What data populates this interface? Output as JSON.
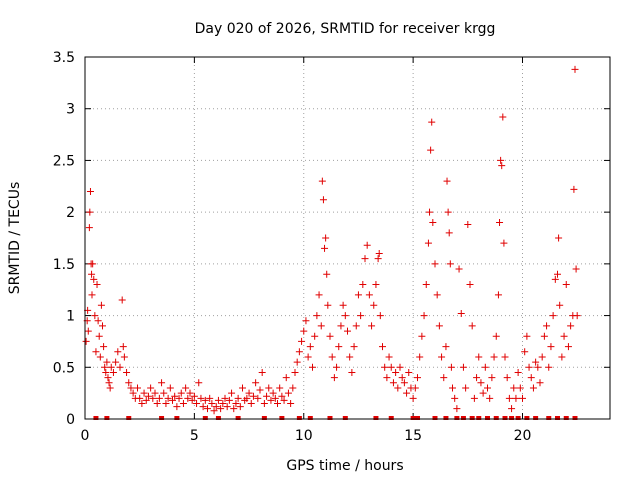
{
  "chart_data": {
    "type": "scatter",
    "title": "Day 020 of 2026, SRMTID for receiver krgg",
    "xlabel": "GPS time / hours",
    "ylabel": "SRMTID / TECUs",
    "xlim": [
      0,
      24
    ],
    "ylim": [
      0,
      3.5
    ],
    "xticks": [
      0,
      5,
      10,
      15,
      20
    ],
    "xtick_labels": [
      "0",
      "5",
      "10",
      "15",
      "20"
    ],
    "yticks": [
      0,
      0.5,
      1,
      1.5,
      2,
      2.5,
      3,
      3.5
    ],
    "ytick_labels": [
      "0",
      "0.5",
      "1",
      "1.5",
      "2",
      "2.5",
      "3",
      "3.5"
    ],
    "grid": true,
    "marker": "+",
    "color": "#e00000",
    "series": [
      {
        "name": "SRMTID",
        "points": [
          [
            0.05,
            0.75
          ],
          [
            0.1,
            0.95
          ],
          [
            0.12,
            1.05
          ],
          [
            0.15,
            0.85
          ],
          [
            0.2,
            1.85
          ],
          [
            0.22,
            2.0
          ],
          [
            0.25,
            2.2
          ],
          [
            0.28,
            1.5
          ],
          [
            0.3,
            1.4
          ],
          [
            0.32,
            1.2
          ],
          [
            0.35,
            1.5
          ],
          [
            0.4,
            1.35
          ],
          [
            0.45,
            1.0
          ],
          [
            0.5,
            0.65
          ],
          [
            0.55,
            1.3
          ],
          [
            0.6,
            0.95
          ],
          [
            0.65,
            0.8
          ],
          [
            0.7,
            0.6
          ],
          [
            0.75,
            1.1
          ],
          [
            0.8,
            0.9
          ],
          [
            0.85,
            0.7
          ],
          [
            0.9,
            0.5
          ],
          [
            0.95,
            0.45
          ],
          [
            1.0,
            0.55
          ],
          [
            1.05,
            0.4
          ],
          [
            1.1,
            0.35
          ],
          [
            1.15,
            0.3
          ],
          [
            1.2,
            0.5
          ],
          [
            1.3,
            0.45
          ],
          [
            1.4,
            0.55
          ],
          [
            1.5,
            0.65
          ],
          [
            1.6,
            0.5
          ],
          [
            1.7,
            1.15
          ],
          [
            1.75,
            0.7
          ],
          [
            1.8,
            0.6
          ],
          [
            1.9,
            0.45
          ],
          [
            2.0,
            0.35
          ],
          [
            2.1,
            0.3
          ],
          [
            2.2,
            0.25
          ],
          [
            2.3,
            0.2
          ],
          [
            2.4,
            0.3
          ],
          [
            2.5,
            0.2
          ],
          [
            2.6,
            0.15
          ],
          [
            2.7,
            0.25
          ],
          [
            2.8,
            0.18
          ],
          [
            2.9,
            0.22
          ],
          [
            3.0,
            0.3
          ],
          [
            3.1,
            0.2
          ],
          [
            3.2,
            0.25
          ],
          [
            3.3,
            0.15
          ],
          [
            3.4,
            0.2
          ],
          [
            3.5,
            0.35
          ],
          [
            3.6,
            0.25
          ],
          [
            3.7,
            0.15
          ],
          [
            3.8,
            0.2
          ],
          [
            3.9,
            0.3
          ],
          [
            4.0,
            0.18
          ],
          [
            4.1,
            0.22
          ],
          [
            4.2,
            0.12
          ],
          [
            4.3,
            0.2
          ],
          [
            4.4,
            0.25
          ],
          [
            4.5,
            0.15
          ],
          [
            4.6,
            0.3
          ],
          [
            4.7,
            0.2
          ],
          [
            4.8,
            0.25
          ],
          [
            4.9,
            0.18
          ],
          [
            5.0,
            0.22
          ],
          [
            5.1,
            0.15
          ],
          [
            5.2,
            0.35
          ],
          [
            5.3,
            0.2
          ],
          [
            5.4,
            0.12
          ],
          [
            5.5,
            0.18
          ],
          [
            5.6,
            0.1
          ],
          [
            5.7,
            0.2
          ],
          [
            5.8,
            0.15
          ],
          [
            5.9,
            0.08
          ],
          [
            6.0,
            0.12
          ],
          [
            6.1,
            0.18
          ],
          [
            6.2,
            0.1
          ],
          [
            6.3,
            0.15
          ],
          [
            6.4,
            0.2
          ],
          [
            6.5,
            0.12
          ],
          [
            6.6,
            0.18
          ],
          [
            6.7,
            0.25
          ],
          [
            6.8,
            0.1
          ],
          [
            6.9,
            0.15
          ],
          [
            7.0,
            0.2
          ],
          [
            7.1,
            0.12
          ],
          [
            7.2,
            0.3
          ],
          [
            7.3,
            0.18
          ],
          [
            7.4,
            0.2
          ],
          [
            7.5,
            0.25
          ],
          [
            7.6,
            0.15
          ],
          [
            7.7,
            0.22
          ],
          [
            7.8,
            0.35
          ],
          [
            7.9,
            0.2
          ],
          [
            8.0,
            0.28
          ],
          [
            8.1,
            0.45
          ],
          [
            8.2,
            0.15
          ],
          [
            8.3,
            0.22
          ],
          [
            8.4,
            0.3
          ],
          [
            8.5,
            0.18
          ],
          [
            8.6,
            0.25
          ],
          [
            8.7,
            0.2
          ],
          [
            8.8,
            0.15
          ],
          [
            8.9,
            0.3
          ],
          [
            9.0,
            0.22
          ],
          [
            9.1,
            0.18
          ],
          [
            9.2,
            0.4
          ],
          [
            9.3,
            0.25
          ],
          [
            9.4,
            0.15
          ],
          [
            9.5,
            0.3
          ],
          [
            9.6,
            0.45
          ],
          [
            9.7,
            0.55
          ],
          [
            9.8,
            0.65
          ],
          [
            9.9,
            0.75
          ],
          [
            10.0,
            0.85
          ],
          [
            10.1,
            0.95
          ],
          [
            10.2,
            0.6
          ],
          [
            10.3,
            0.7
          ],
          [
            10.4,
            0.5
          ],
          [
            10.5,
            0.8
          ],
          [
            10.6,
            1.0
          ],
          [
            10.7,
            1.2
          ],
          [
            10.8,
            0.9
          ],
          [
            10.85,
            2.3
          ],
          [
            10.9,
            2.12
          ],
          [
            10.95,
            1.65
          ],
          [
            11.0,
            1.75
          ],
          [
            11.05,
            1.4
          ],
          [
            11.1,
            1.1
          ],
          [
            11.2,
            0.8
          ],
          [
            11.3,
            0.6
          ],
          [
            11.4,
            0.4
          ],
          [
            11.5,
            0.5
          ],
          [
            11.6,
            0.7
          ],
          [
            11.7,
            0.9
          ],
          [
            11.8,
            1.1
          ],
          [
            11.9,
            1.0
          ],
          [
            12.0,
            0.85
          ],
          [
            12.1,
            0.6
          ],
          [
            12.2,
            0.45
          ],
          [
            12.3,
            0.7
          ],
          [
            12.4,
            0.9
          ],
          [
            12.5,
            1.2
          ],
          [
            12.6,
            1.0
          ],
          [
            12.7,
            1.3
          ],
          [
            12.8,
            1.55
          ],
          [
            12.9,
            1.68
          ],
          [
            13.0,
            1.2
          ],
          [
            13.1,
            0.9
          ],
          [
            13.2,
            1.1
          ],
          [
            13.3,
            1.3
          ],
          [
            13.4,
            1.55
          ],
          [
            13.45,
            1.6
          ],
          [
            13.5,
            1.0
          ],
          [
            13.6,
            0.7
          ],
          [
            13.7,
            0.5
          ],
          [
            13.8,
            0.4
          ],
          [
            13.9,
            0.6
          ],
          [
            14.0,
            0.5
          ],
          [
            14.1,
            0.35
          ],
          [
            14.2,
            0.45
          ],
          [
            14.3,
            0.3
          ],
          [
            14.4,
            0.5
          ],
          [
            14.5,
            0.4
          ],
          [
            14.6,
            0.35
          ],
          [
            14.7,
            0.25
          ],
          [
            14.8,
            0.45
          ],
          [
            14.9,
            0.3
          ],
          [
            15.0,
            0.2
          ],
          [
            15.1,
            0.3
          ],
          [
            15.2,
            0.4
          ],
          [
            15.3,
            0.6
          ],
          [
            15.4,
            0.8
          ],
          [
            15.5,
            1.0
          ],
          [
            15.6,
            1.3
          ],
          [
            15.7,
            1.7
          ],
          [
            15.75,
            2.0
          ],
          [
            15.8,
            2.6
          ],
          [
            15.85,
            2.87
          ],
          [
            15.9,
            1.9
          ],
          [
            16.0,
            1.5
          ],
          [
            16.1,
            1.2
          ],
          [
            16.2,
            0.9
          ],
          [
            16.3,
            0.6
          ],
          [
            16.4,
            0.4
          ],
          [
            16.5,
            0.7
          ],
          [
            16.55,
            2.3
          ],
          [
            16.6,
            2.0
          ],
          [
            16.65,
            1.8
          ],
          [
            16.7,
            1.5
          ],
          [
            16.75,
            0.5
          ],
          [
            16.8,
            0.3
          ],
          [
            16.9,
            0.2
          ],
          [
            17.0,
            0.1
          ],
          [
            17.1,
            1.45
          ],
          [
            17.2,
            1.02
          ],
          [
            17.3,
            0.5
          ],
          [
            17.4,
            0.3
          ],
          [
            17.5,
            1.88
          ],
          [
            17.6,
            1.3
          ],
          [
            17.7,
            0.9
          ],
          [
            17.8,
            0.2
          ],
          [
            17.9,
            0.4
          ],
          [
            18.0,
            0.6
          ],
          [
            18.1,
            0.35
          ],
          [
            18.2,
            0.25
          ],
          [
            18.3,
            0.5
          ],
          [
            18.4,
            0.3
          ],
          [
            18.5,
            0.2
          ],
          [
            18.6,
            0.4
          ],
          [
            18.7,
            0.6
          ],
          [
            18.8,
            0.8
          ],
          [
            18.9,
            1.2
          ],
          [
            18.95,
            1.9
          ],
          [
            19.0,
            2.5
          ],
          [
            19.05,
            2.45
          ],
          [
            19.1,
            2.92
          ],
          [
            19.15,
            1.7
          ],
          [
            19.2,
            0.6
          ],
          [
            19.3,
            0.4
          ],
          [
            19.4,
            0.2
          ],
          [
            19.5,
            0.1
          ],
          [
            19.6,
            0.3
          ],
          [
            19.7,
            0.2
          ],
          [
            19.8,
            0.45
          ],
          [
            19.9,
            0.3
          ],
          [
            20.0,
            0.2
          ],
          [
            20.1,
            0.65
          ],
          [
            20.2,
            0.8
          ],
          [
            20.3,
            0.5
          ],
          [
            20.4,
            0.4
          ],
          [
            20.5,
            0.3
          ],
          [
            20.6,
            0.55
          ],
          [
            20.7,
            0.5
          ],
          [
            20.8,
            0.35
          ],
          [
            20.9,
            0.6
          ],
          [
            21.0,
            0.8
          ],
          [
            21.1,
            0.9
          ],
          [
            21.2,
            0.5
          ],
          [
            21.3,
            0.7
          ],
          [
            21.4,
            1.0
          ],
          [
            21.5,
            1.35
          ],
          [
            21.6,
            1.4
          ],
          [
            21.65,
            1.75
          ],
          [
            21.7,
            1.1
          ],
          [
            21.8,
            0.6
          ],
          [
            21.9,
            0.8
          ],
          [
            22.0,
            1.3
          ],
          [
            22.1,
            0.7
          ],
          [
            22.2,
            0.9
          ],
          [
            22.3,
            1.0
          ],
          [
            22.35,
            2.22
          ],
          [
            22.4,
            3.38
          ],
          [
            22.45,
            1.45
          ],
          [
            22.5,
            1.0
          ]
        ],
        "zero_values_x": [
          0.5,
          1.0,
          2.0,
          3.5,
          4.2,
          5.5,
          6.1,
          7.0,
          8.2,
          9.0,
          9.8,
          10.3,
          11.2,
          11.9,
          13.3,
          14.0,
          15.0,
          15.2,
          16.0,
          16.5,
          17.0,
          17.3,
          17.7,
          18.0,
          18.4,
          18.8,
          19.2,
          19.5,
          19.8,
          20.2,
          20.6,
          21.2,
          21.6,
          22.0,
          22.4
        ]
      }
    ]
  }
}
